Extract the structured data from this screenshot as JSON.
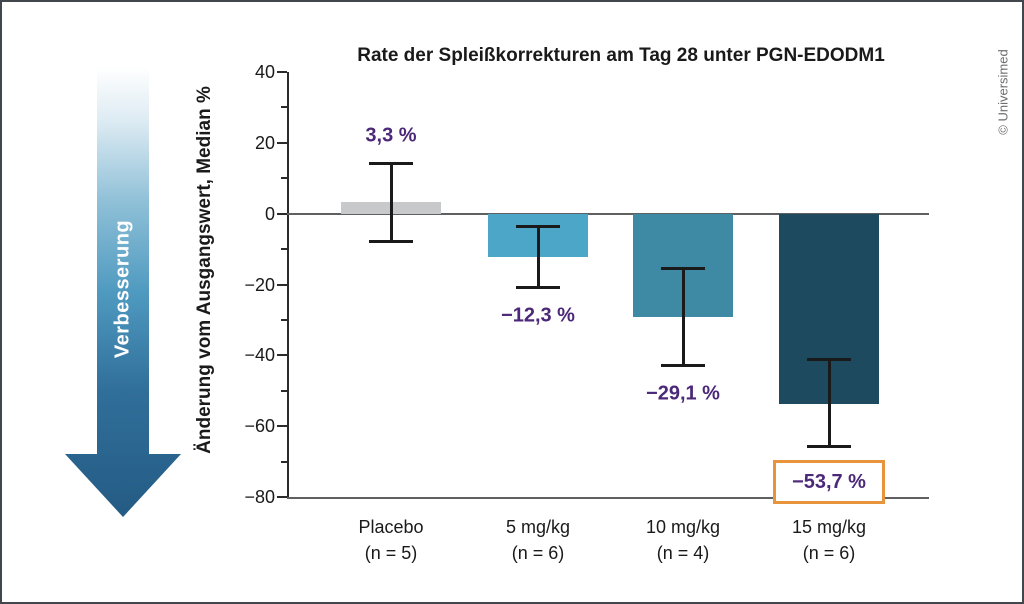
{
  "page": {
    "credit": "© Universimed",
    "background": "#ffffff",
    "border_color": "#42474e"
  },
  "improvement_arrow": {
    "label": "Verbesserung",
    "direction": "down",
    "text_color": "#ffffff",
    "gradient": [
      "#ffffff",
      "#ddebf3",
      "#8fc0d7",
      "#4f9ac0",
      "#306f9a",
      "#245b84"
    ]
  },
  "chart_data": {
    "type": "bar",
    "title": "Rate der Spleißkorrekturen am Tag 28 unter PGN-EDODM1",
    "xlabel": "",
    "ylabel": "Änderung vom Ausgangswert, Median %",
    "ylim": [
      -80,
      40
    ],
    "yticks_major": [
      40,
      20,
      0,
      -20,
      -40,
      -60,
      -80
    ],
    "ytick_labels": [
      "40",
      "20",
      "0",
      "−20",
      "−40",
      "−60",
      "−80"
    ],
    "yticks_minor": [
      30,
      10,
      -10,
      -30,
      -50,
      -70
    ],
    "grid": false,
    "zero_line": true,
    "legend": "none",
    "categories": [
      {
        "dose": "Placebo",
        "n": "(n = 5)"
      },
      {
        "dose": "5 mg/kg",
        "n": "(n = 6)"
      },
      {
        "dose": "10 mg/kg",
        "n": "(n = 4)"
      },
      {
        "dose": "15 mg/kg",
        "n": "(n = 6)"
      }
    ],
    "series": [
      {
        "name": "Änderung vom Ausgangswert, Median %",
        "points": [
          {
            "value": 3.3,
            "label": "3,3 %",
            "whisker_high": 14.2,
            "whisker_low": -7.9,
            "color": "#c8c9cb",
            "highlighted": false
          },
          {
            "value": -12.3,
            "label": "−12,3 %",
            "whisker_high": -3.5,
            "whisker_low": -21.0,
            "color": "#4ba6c7",
            "highlighted": false
          },
          {
            "value": -29.1,
            "label": "−29,1 %",
            "whisker_high": -15.3,
            "whisker_low": -43.0,
            "color": "#3e89a4",
            "highlighted": false
          },
          {
            "value": -53.7,
            "label": "−53,7 %",
            "whisker_high": -41.0,
            "whisker_low": -66.0,
            "color": "#1e4a60",
            "highlighted": true
          }
        ]
      }
    ],
    "value_label_color": "#4c2878",
    "highlight_box_color": "#e8943d",
    "error_bar_color": "#1a1a1a"
  }
}
